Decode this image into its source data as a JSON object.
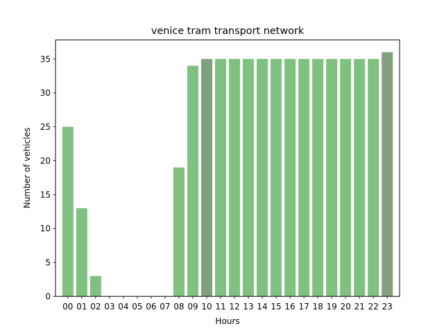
{
  "chart_data": {
    "type": "bar",
    "title": "venice tram transport network",
    "xlabel": "Hours",
    "ylabel": "Number of vehicles",
    "categories": [
      "00",
      "01",
      "02",
      "03",
      "04",
      "05",
      "06",
      "07",
      "08",
      "09",
      "10",
      "11",
      "12",
      "13",
      "14",
      "15",
      "16",
      "17",
      "18",
      "19",
      "20",
      "21",
      "22",
      "23"
    ],
    "values": [
      25,
      13,
      3,
      0,
      0,
      0,
      0,
      0,
      19,
      34,
      35,
      35,
      35,
      35,
      35,
      35,
      35,
      35,
      35,
      35,
      35,
      35,
      35,
      36
    ],
    "highlighted_categories": [
      "10",
      "23"
    ],
    "ylim": [
      0,
      37.8
    ],
    "yticks": [
      0,
      5,
      10,
      15,
      20,
      25,
      30,
      35
    ],
    "grid": false,
    "colors": {
      "bar": "#80c080",
      "bar_highlight": "#80a080"
    }
  }
}
